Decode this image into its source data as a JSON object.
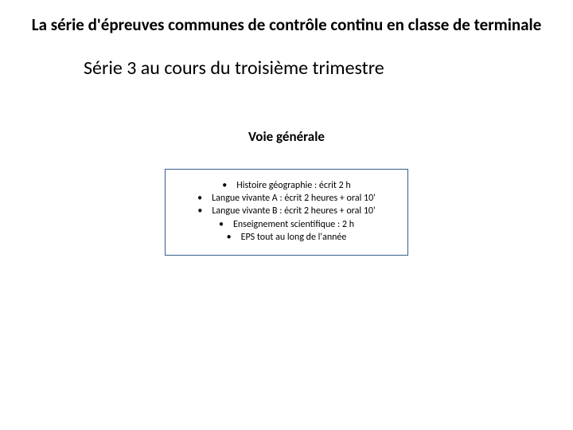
{
  "title": {
    "text": "La série d'épreuves communes de contrôle continu en classe de terminale",
    "fontsize": 21,
    "color": "#000000"
  },
  "subtitle": {
    "text": "Série 3 au cours du troisième trimestre",
    "fontsize": 24,
    "color": "#000000"
  },
  "section_heading": {
    "text": "Voie générale",
    "fontsize": 17,
    "color": "#000000"
  },
  "box": {
    "border_color": "#385d8a",
    "background_color": "#ffffff",
    "fontsize": 12,
    "items": [
      "Histoire géographie : écrit 2 h",
      "Langue vivante A : écrit 2 heures + oral 10'",
      "Langue vivante B : écrit 2 heures + oral 10'",
      "Enseignement scientifique : 2 h",
      "EPS tout au long de l'année"
    ]
  }
}
